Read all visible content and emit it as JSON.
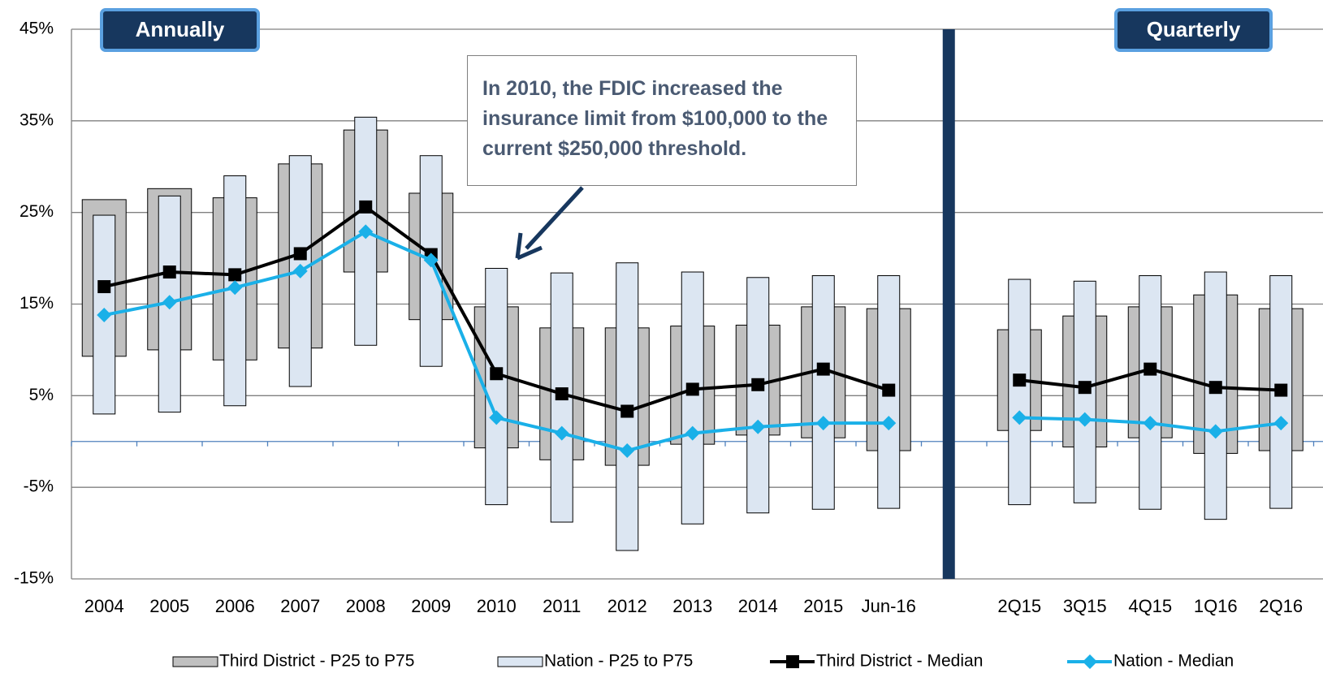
{
  "chart_data": {
    "type": "range-bar-line",
    "annotations": [
      "Annually",
      "Quarterly",
      "In 2010, the FDIC increased the insurance limit from $100,000 to the current $250,000 threshold."
    ],
    "categories": [
      "2004",
      "2005",
      "2006",
      "2007",
      "2008",
      "2009",
      "2010",
      "2011",
      "2012",
      "2013",
      "2014",
      "2015",
      "Jun-16",
      null,
      "2Q15",
      "3Q15",
      "4Q15",
      "1Q16",
      "2Q16"
    ],
    "ylim": [
      -15,
      45
    ],
    "yticks": [
      {
        "value": -15,
        "label": "-15%"
      },
      {
        "value": -5,
        "label": "-5%"
      },
      {
        "value": 5,
        "label": "5%"
      },
      {
        "value": 15,
        "label": "15%"
      },
      {
        "value": 25,
        "label": "25%"
      },
      {
        "value": 35,
        "label": "35%"
      },
      {
        "value": 45,
        "label": "45%"
      }
    ],
    "grid": true,
    "series": [
      {
        "name": "Third District - P25 to P75",
        "kind": "range",
        "color": "#c0c0c0",
        "low": [
          9.3,
          10.0,
          8.9,
          10.2,
          18.5,
          13.3,
          -0.7,
          -2.0,
          -2.6,
          -0.3,
          0.7,
          0.4,
          -1.0,
          null,
          1.2,
          -0.6,
          0.4,
          -1.3,
          -1.0
        ],
        "high": [
          26.4,
          27.6,
          26.6,
          30.3,
          34.0,
          27.1,
          14.7,
          12.4,
          12.4,
          12.6,
          12.7,
          14.7,
          14.5,
          null,
          12.2,
          13.7,
          14.7,
          16.0,
          14.5
        ]
      },
      {
        "name": "Nation - P25 to P75",
        "kind": "range",
        "color": "#dce6f2",
        "low": [
          3.0,
          3.2,
          3.9,
          6.0,
          10.5,
          8.2,
          -6.9,
          -8.8,
          -11.9,
          -9.0,
          -7.8,
          -7.4,
          -7.3,
          null,
          -6.9,
          -6.7,
          -7.4,
          -8.5,
          -7.3
        ],
        "high": [
          24.7,
          26.8,
          29.0,
          31.2,
          35.4,
          31.2,
          18.9,
          18.4,
          19.5,
          18.5,
          17.9,
          18.1,
          18.1,
          null,
          17.7,
          17.5,
          18.1,
          18.5,
          18.1
        ]
      },
      {
        "name": "Third District - Median",
        "kind": "line",
        "marker": "square",
        "color": "#000000",
        "values": [
          16.9,
          18.5,
          18.2,
          20.5,
          25.6,
          20.4,
          7.4,
          5.2,
          3.3,
          5.7,
          6.2,
          7.9,
          5.6,
          null,
          6.7,
          5.9,
          7.9,
          5.9,
          5.6
        ]
      },
      {
        "name": "Nation - Median",
        "kind": "line",
        "marker": "diamond",
        "color": "#1ab0e8",
        "values": [
          13.8,
          15.2,
          16.8,
          18.6,
          22.9,
          19.8,
          2.6,
          0.9,
          -1.0,
          0.9,
          1.6,
          2.0,
          2.0,
          null,
          2.6,
          2.4,
          2.0,
          1.1,
          2.0
        ]
      }
    ]
  }
}
